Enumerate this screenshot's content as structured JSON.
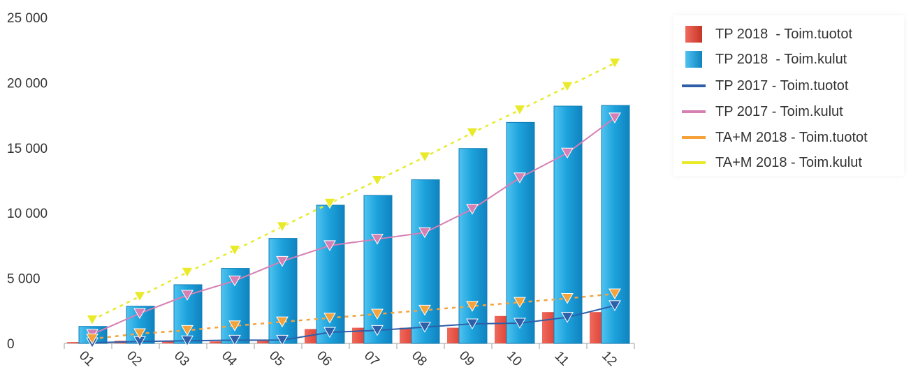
{
  "chart_data": {
    "type": "bar",
    "categories": [
      "01",
      "02",
      "03",
      "04",
      "05",
      "06",
      "07",
      "08",
      "09",
      "10",
      "11",
      "12"
    ],
    "ylim": [
      0,
      25000
    ],
    "yticks": [
      "25 000",
      "20 000",
      "15 000",
      "10 000",
      "5 000",
      "0"
    ],
    "ytick_values": [
      25000,
      20000,
      15000,
      10000,
      5000,
      0
    ],
    "grid": false,
    "legend_position": "top-right",
    "series": [
      {
        "name": "TP 2018  - Toim.tuotot",
        "kind": "bar",
        "color": "#e0483a",
        "values": [
          100,
          200,
          150,
          150,
          200,
          1100,
          1200,
          1200,
          1200,
          2100,
          2400,
          2400
        ]
      },
      {
        "name": "TP 2018  - Toim.kulut",
        "kind": "bar",
        "color": "#1ea3dd",
        "values": [
          1300,
          2850,
          4500,
          5750,
          8050,
          10600,
          11350,
          12550,
          14950,
          16950,
          18200,
          18250
        ]
      },
      {
        "name": "TP 2017 - Toim.tuotot",
        "kind": "line",
        "color": "#2e5fa8",
        "values": [
          50,
          150,
          200,
          250,
          250,
          850,
          1000,
          1250,
          1500,
          1550,
          2000,
          2900
        ]
      },
      {
        "name": "TP 2017 - Toim.kulut",
        "kind": "line",
        "color": "#d67fb3",
        "values": [
          700,
          2300,
          3700,
          4800,
          6300,
          7500,
          8000,
          8500,
          10300,
          12700,
          14600,
          17300
        ]
      },
      {
        "name": "TA+M 2018 - Toim.tuotot",
        "kind": "dashed-line",
        "color": "#f5a23b",
        "values": [
          350,
          750,
          1000,
          1350,
          1650,
          1950,
          2250,
          2550,
          2850,
          3150,
          3450,
          3800
        ]
      },
      {
        "name": "TA+M 2018 - Toim.kulut",
        "kind": "dashed-line",
        "color": "#e8ea2a",
        "values": [
          1800,
          3600,
          5450,
          7150,
          8950,
          10750,
          12500,
          14300,
          16150,
          17900,
          19700,
          21500
        ]
      }
    ]
  }
}
